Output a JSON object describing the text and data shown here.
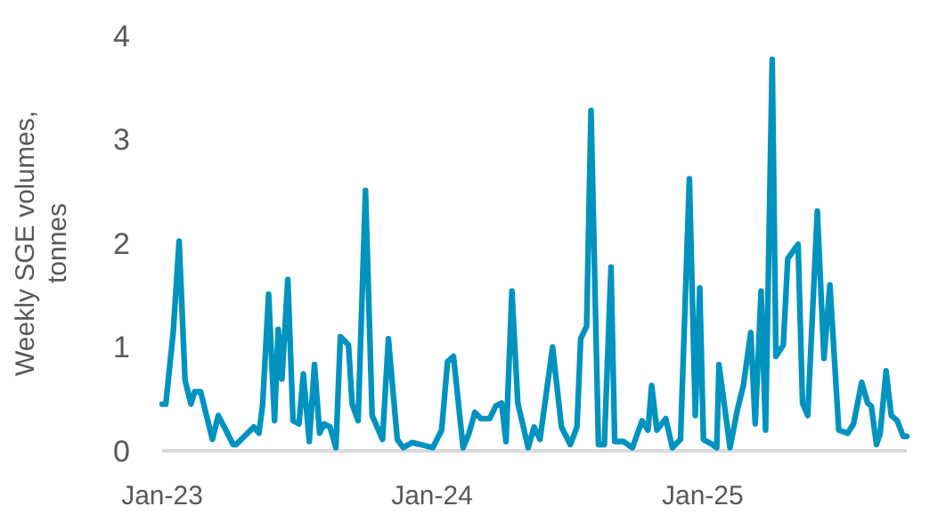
{
  "chart_data": {
    "type": "line",
    "ylabel": "Weekly SGE volumes, tonnes",
    "xlim": [
      "2023-01-01",
      "2025-10-04"
    ],
    "xticks": [
      {
        "value": "2023-01-01",
        "label": "Jan-23"
      },
      {
        "value": "2024-01-01",
        "label": "Jan-24"
      },
      {
        "value": "2025-01-01",
        "label": "Jan-25"
      }
    ],
    "ylim": [
      0,
      4
    ],
    "yticks": [
      0,
      1,
      2,
      3,
      4
    ],
    "marker": "none",
    "line_style": "solid",
    "series": [
      {
        "color": "#0093bf",
        "x": [
          "2023-01-01",
          "2023-01-06",
          "2023-01-16",
          "2023-01-24",
          "2023-02-01",
          "2023-02-09",
          "2023-02-14",
          "2023-02-22",
          "2023-03-10",
          "2023-03-18",
          "2023-03-26",
          "2023-04-07",
          "2023-04-11",
          "2023-05-05",
          "2023-05-12",
          "2023-05-17",
          "2023-05-25",
          "2023-06-02",
          "2023-06-07",
          "2023-06-12",
          "2023-06-20",
          "2023-06-27",
          "2023-07-05",
          "2023-07-11",
          "2023-07-19",
          "2023-07-26",
          "2023-08-02",
          "2023-08-08",
          "2023-08-16",
          "2023-08-24",
          "2023-08-30",
          "2023-09-10",
          "2023-09-15",
          "2023-09-23",
          "2023-10-03",
          "2023-10-12",
          "2023-10-26",
          "2023-11-03",
          "2023-11-15",
          "2023-11-23",
          "2023-12-05",
          "2023-12-17",
          "2024-01-02",
          "2024-01-14",
          "2024-01-22",
          "2024-01-30",
          "2024-02-12",
          "2024-02-20",
          "2024-02-28",
          "2024-03-07",
          "2024-03-19",
          "2024-03-27",
          "2024-04-04",
          "2024-04-10",
          "2024-04-18",
          "2024-04-26",
          "2024-05-10",
          "2024-05-18",
          "2024-05-26",
          "2024-06-12",
          "2024-06-24",
          "2024-07-06",
          "2024-07-15",
          "2024-07-20",
          "2024-07-28",
          "2024-08-03",
          "2024-08-13",
          "2024-08-21",
          "2024-08-30",
          "2024-09-04",
          "2024-09-16",
          "2024-09-28",
          "2024-10-11",
          "2024-10-19",
          "2024-10-24",
          "2024-10-31",
          "2024-11-12",
          "2024-11-21",
          "2024-12-02",
          "2024-12-14",
          "2024-12-22",
          "2024-12-28",
          "2025-01-02",
          "2025-01-14",
          "2025-01-20",
          "2025-01-23",
          "2025-02-07",
          "2025-02-17",
          "2025-02-25",
          "2025-03-07",
          "2025-03-13",
          "2025-03-21",
          "2025-03-27",
          "2025-04-05",
          "2025-04-10",
          "2025-04-20",
          "2025-04-26",
          "2025-05-10",
          "2025-05-16",
          "2025-05-23",
          "2025-06-05",
          "2025-06-14",
          "2025-06-22",
          "2025-07-04",
          "2025-07-16",
          "2025-07-24",
          "2025-08-04",
          "2025-08-12",
          "2025-08-17",
          "2025-08-24",
          "2025-08-29",
          "2025-09-06",
          "2025-09-13",
          "2025-09-21",
          "2025-09-29",
          "2025-10-04"
        ],
        "values": [
          0.45,
          0.45,
          1.14,
          2.02,
          0.68,
          0.45,
          0.57,
          0.57,
          0.11,
          0.34,
          0.23,
          0.06,
          0.06,
          0.23,
          0.17,
          0.45,
          1.51,
          0.29,
          1.17,
          0.69,
          1.65,
          0.29,
          0.26,
          0.74,
          0.09,
          0.83,
          0.17,
          0.26,
          0.23,
          0.03,
          1.1,
          1.02,
          0.45,
          0.29,
          2.51,
          0.34,
          0.11,
          1.08,
          0.11,
          0.03,
          0.08,
          0.06,
          0.03,
          0.2,
          0.86,
          0.91,
          0.03,
          0.17,
          0.37,
          0.31,
          0.31,
          0.43,
          0.46,
          0.09,
          1.54,
          0.46,
          0.03,
          0.23,
          0.11,
          1.0,
          0.23,
          0.06,
          0.23,
          1.08,
          1.2,
          3.28,
          0.06,
          0.06,
          1.77,
          0.09,
          0.09,
          0.03,
          0.29,
          0.2,
          0.63,
          0.2,
          0.31,
          0.03,
          0.11,
          2.62,
          0.34,
          1.57,
          0.11,
          0.06,
          0.03,
          0.83,
          0.03,
          0.4,
          0.63,
          1.14,
          0.26,
          1.54,
          0.2,
          3.77,
          0.91,
          1.02,
          1.85,
          1.99,
          0.46,
          0.34,
          2.31,
          0.89,
          1.6,
          0.2,
          0.17,
          0.26,
          0.66,
          0.46,
          0.43,
          0.06,
          0.17,
          0.77,
          0.34,
          0.29,
          0.14,
          0.14
        ]
      }
    ]
  }
}
